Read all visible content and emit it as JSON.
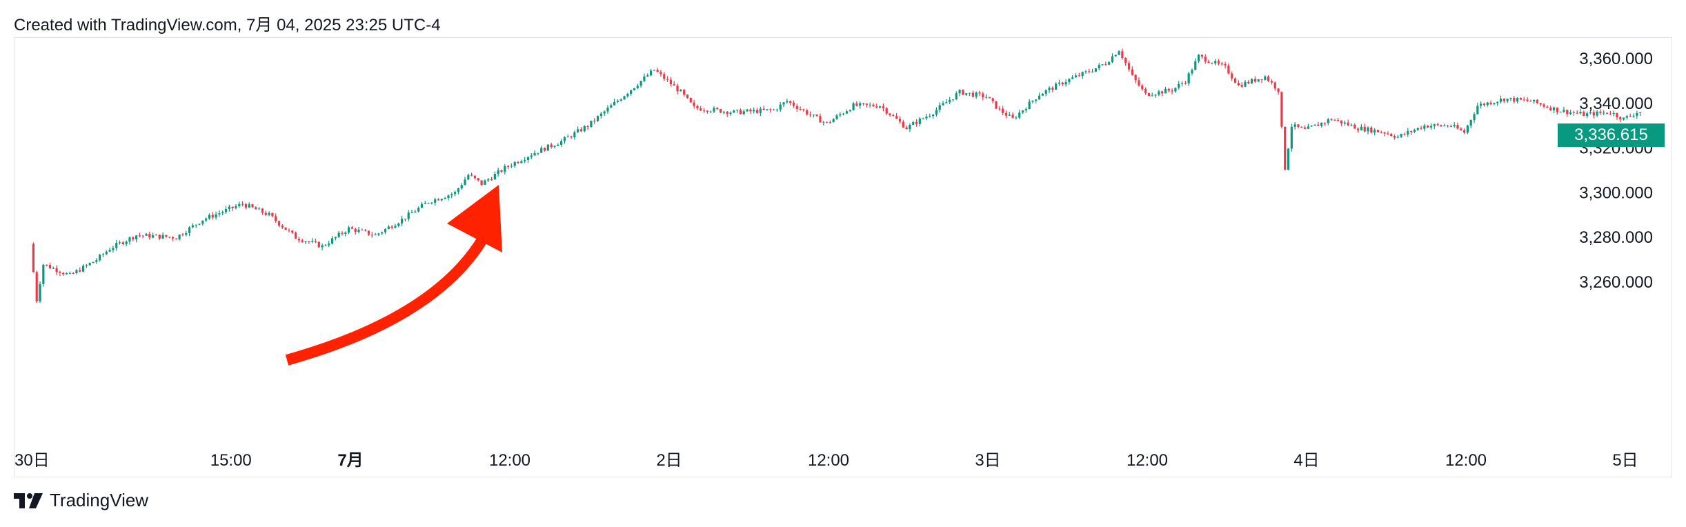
{
  "header": {
    "text": "Created with TradingView.com, 7月 04, 2025 23:25 UTC-4"
  },
  "footer": {
    "brand": "TradingView"
  },
  "price_badge": "3,336.615",
  "colors": {
    "up": "#089981",
    "down": "#f23645",
    "arrow": "#ff2200",
    "badge": "#089981",
    "grid_border": "#e0e3eb"
  },
  "chart_data": {
    "type": "candlestick",
    "title": "",
    "ylim": [
      3240,
      3367
    ],
    "y_ticks": [
      {
        "value": 3360,
        "label": "3,360.000"
      },
      {
        "value": 3340,
        "label": "3,340.000"
      },
      {
        "value": 3320,
        "label": "3,320.000"
      },
      {
        "value": 3300,
        "label": "3,300.000"
      },
      {
        "value": 3280,
        "label": "3,280.000"
      },
      {
        "value": 3260,
        "label": "3,260.000"
      }
    ],
    "x_ticks": [
      {
        "time": "2025-06-30 00:00",
        "label": "30日",
        "bold": false
      },
      {
        "time": "2025-06-30 15:00",
        "label": "15:00",
        "bold": false
      },
      {
        "time": "2025-07-01 00:00",
        "label": "7月",
        "bold": true
      },
      {
        "time": "2025-07-01 12:00",
        "label": "12:00",
        "bold": false
      },
      {
        "time": "2025-07-02 00:00",
        "label": "2日",
        "bold": false
      },
      {
        "time": "2025-07-02 12:00",
        "label": "12:00",
        "bold": false
      },
      {
        "time": "2025-07-03 00:00",
        "label": "3日",
        "bold": false
      },
      {
        "time": "2025-07-03 12:00",
        "label": "12:00",
        "bold": false
      },
      {
        "time": "2025-07-04 00:00",
        "label": "4日",
        "bold": false
      },
      {
        "time": "2025-07-04 12:00",
        "label": "12:00",
        "bold": false
      },
      {
        "time": "2025-07-05 00:00",
        "label": "5日",
        "bold": false
      }
    ],
    "last_price": 3336.615,
    "path": [
      [
        "2025-06-30 00:00",
        3277
      ],
      [
        "2025-06-30 00:30",
        3252
      ],
      [
        "2025-06-30 01:00",
        3268
      ],
      [
        "2025-06-30 03:00",
        3263
      ],
      [
        "2025-06-30 05:00",
        3270
      ],
      [
        "2025-06-30 06:00",
        3275
      ],
      [
        "2025-06-30 08:00",
        3281
      ],
      [
        "2025-06-30 11:00",
        3280
      ],
      [
        "2025-06-30 13:00",
        3288
      ],
      [
        "2025-06-30 16:00",
        3295
      ],
      [
        "2025-06-30 18:00",
        3290
      ],
      [
        "2025-06-30 20:00",
        3280
      ],
      [
        "2025-06-30 22:00",
        3276
      ],
      [
        "2025-07-01 00:00",
        3284
      ],
      [
        "2025-07-01 02:00",
        3281
      ],
      [
        "2025-07-01 04:00",
        3288
      ],
      [
        "2025-07-01 06:00",
        3296
      ],
      [
        "2025-07-01 08:00",
        3300
      ],
      [
        "2025-07-01 09:00",
        3308
      ],
      [
        "2025-07-01 10:00",
        3304
      ],
      [
        "2025-07-01 12:00",
        3312
      ],
      [
        "2025-07-01 14:00",
        3318
      ],
      [
        "2025-07-01 16:00",
        3323
      ],
      [
        "2025-07-01 18:00",
        3330
      ],
      [
        "2025-07-01 20:00",
        3340
      ],
      [
        "2025-07-01 22:00",
        3350
      ],
      [
        "2025-07-01 23:00",
        3355
      ],
      [
        "2025-07-02 00:00",
        3350
      ],
      [
        "2025-07-02 01:00",
        3345
      ],
      [
        "2025-07-02 02:00",
        3338
      ],
      [
        "2025-07-02 05:00",
        3336
      ],
      [
        "2025-07-02 08:00",
        3337
      ],
      [
        "2025-07-02 09:00",
        3341
      ],
      [
        "2025-07-02 11:00",
        3334
      ],
      [
        "2025-07-02 12:00",
        3331
      ],
      [
        "2025-07-02 14:00",
        3339
      ],
      [
        "2025-07-02 16:00",
        3339
      ],
      [
        "2025-07-02 17:00",
        3334
      ],
      [
        "2025-07-02 18:00",
        3329
      ],
      [
        "2025-07-02 20:00",
        3336
      ],
      [
        "2025-07-02 22:00",
        3345
      ],
      [
        "2025-07-03 00:00",
        3343
      ],
      [
        "2025-07-03 01:00",
        3337
      ],
      [
        "2025-07-03 02:00",
        3333
      ],
      [
        "2025-07-03 04:00",
        3344
      ],
      [
        "2025-07-03 06:00",
        3350
      ],
      [
        "2025-07-03 08:00",
        3355
      ],
      [
        "2025-07-03 09:00",
        3358
      ],
      [
        "2025-07-03 10:00",
        3364
      ],
      [
        "2025-07-03 11:00",
        3352
      ],
      [
        "2025-07-03 12:00",
        3344
      ],
      [
        "2025-07-03 14:00",
        3346
      ],
      [
        "2025-07-03 15:00",
        3350
      ],
      [
        "2025-07-03 16:00",
        3361
      ],
      [
        "2025-07-03 18:00",
        3356
      ],
      [
        "2025-07-03 19:00",
        3348
      ],
      [
        "2025-07-03 21:00",
        3352
      ],
      [
        "2025-07-03 22:00",
        3346
      ],
      [
        "2025-07-03 22:30",
        3311
      ],
      [
        "2025-07-03 23:00",
        3330
      ],
      [
        "2025-07-04 00:00",
        3328
      ],
      [
        "2025-07-04 02:00",
        3333
      ],
      [
        "2025-07-04 04:00",
        3329
      ],
      [
        "2025-07-04 06:00",
        3327
      ],
      [
        "2025-07-04 07:00",
        3325
      ],
      [
        "2025-07-04 09:00",
        3330
      ],
      [
        "2025-07-04 11:00",
        3330
      ],
      [
        "2025-07-04 12:00",
        3327
      ],
      [
        "2025-07-04 13:00",
        3339
      ],
      [
        "2025-07-04 15:00",
        3342
      ],
      [
        "2025-07-04 17:00",
        3341
      ],
      [
        "2025-07-04 19:00",
        3337
      ],
      [
        "2025-07-04 21:00",
        3335
      ],
      [
        "2025-07-04 23:00",
        3336
      ],
      [
        "2025-07-05 00:00",
        3333
      ],
      [
        "2025-07-05 01:00",
        3336
      ]
    ]
  },
  "annotation": {
    "type": "arrow",
    "description_color": "#ff2200"
  }
}
